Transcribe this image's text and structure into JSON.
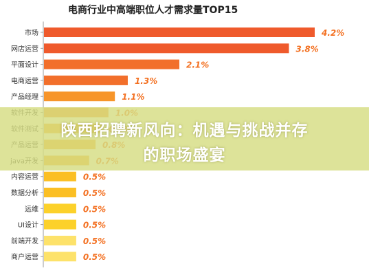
{
  "chart_data": {
    "type": "bar",
    "orientation": "horizontal",
    "title": "电商行业中高端职位人才需求量TOP15",
    "categories": [
      "市场",
      "网店运营",
      "平面设计",
      "电商运营",
      "产品经理",
      "软件开发",
      "软件测试",
      "产品运营",
      "java开发",
      "内容运营",
      "数据分析",
      "运维",
      "UI设计",
      "前端开发",
      "商户运营"
    ],
    "values": [
      4.2,
      3.8,
      2.1,
      1.3,
      1.1,
      1.0,
      0.9,
      0.8,
      0.7,
      0.5,
      0.5,
      0.5,
      0.5,
      0.5,
      0.5
    ],
    "value_labels": [
      "4.2%",
      "3.8%",
      "2.1%",
      "1.3%",
      "1.1%",
      "1.0%",
      "0.9%",
      "0.8%",
      "0.7%",
      "0.5%",
      "0.5%",
      "0.5%",
      "0.5%",
      "0.5%",
      "0.5%"
    ],
    "unit": "%",
    "xlim": [
      0,
      4.2
    ],
    "grid": false,
    "colors": {
      "bar_gradient": [
        "#ef5a2c",
        "#f26f2b",
        "#f7952a",
        "#f9ad25",
        "#fbbf24",
        "#fcd12a",
        "#fde26a"
      ],
      "value_label": "#f37021",
      "axis": "#9a9a9a",
      "category_text": "#333333"
    }
  },
  "overlay": {
    "line1": "陕西招聘新风向：机遇与挑战并存",
    "line2": "的职场盛宴",
    "background": "#d6dd82",
    "text_color": "#ffffff"
  }
}
